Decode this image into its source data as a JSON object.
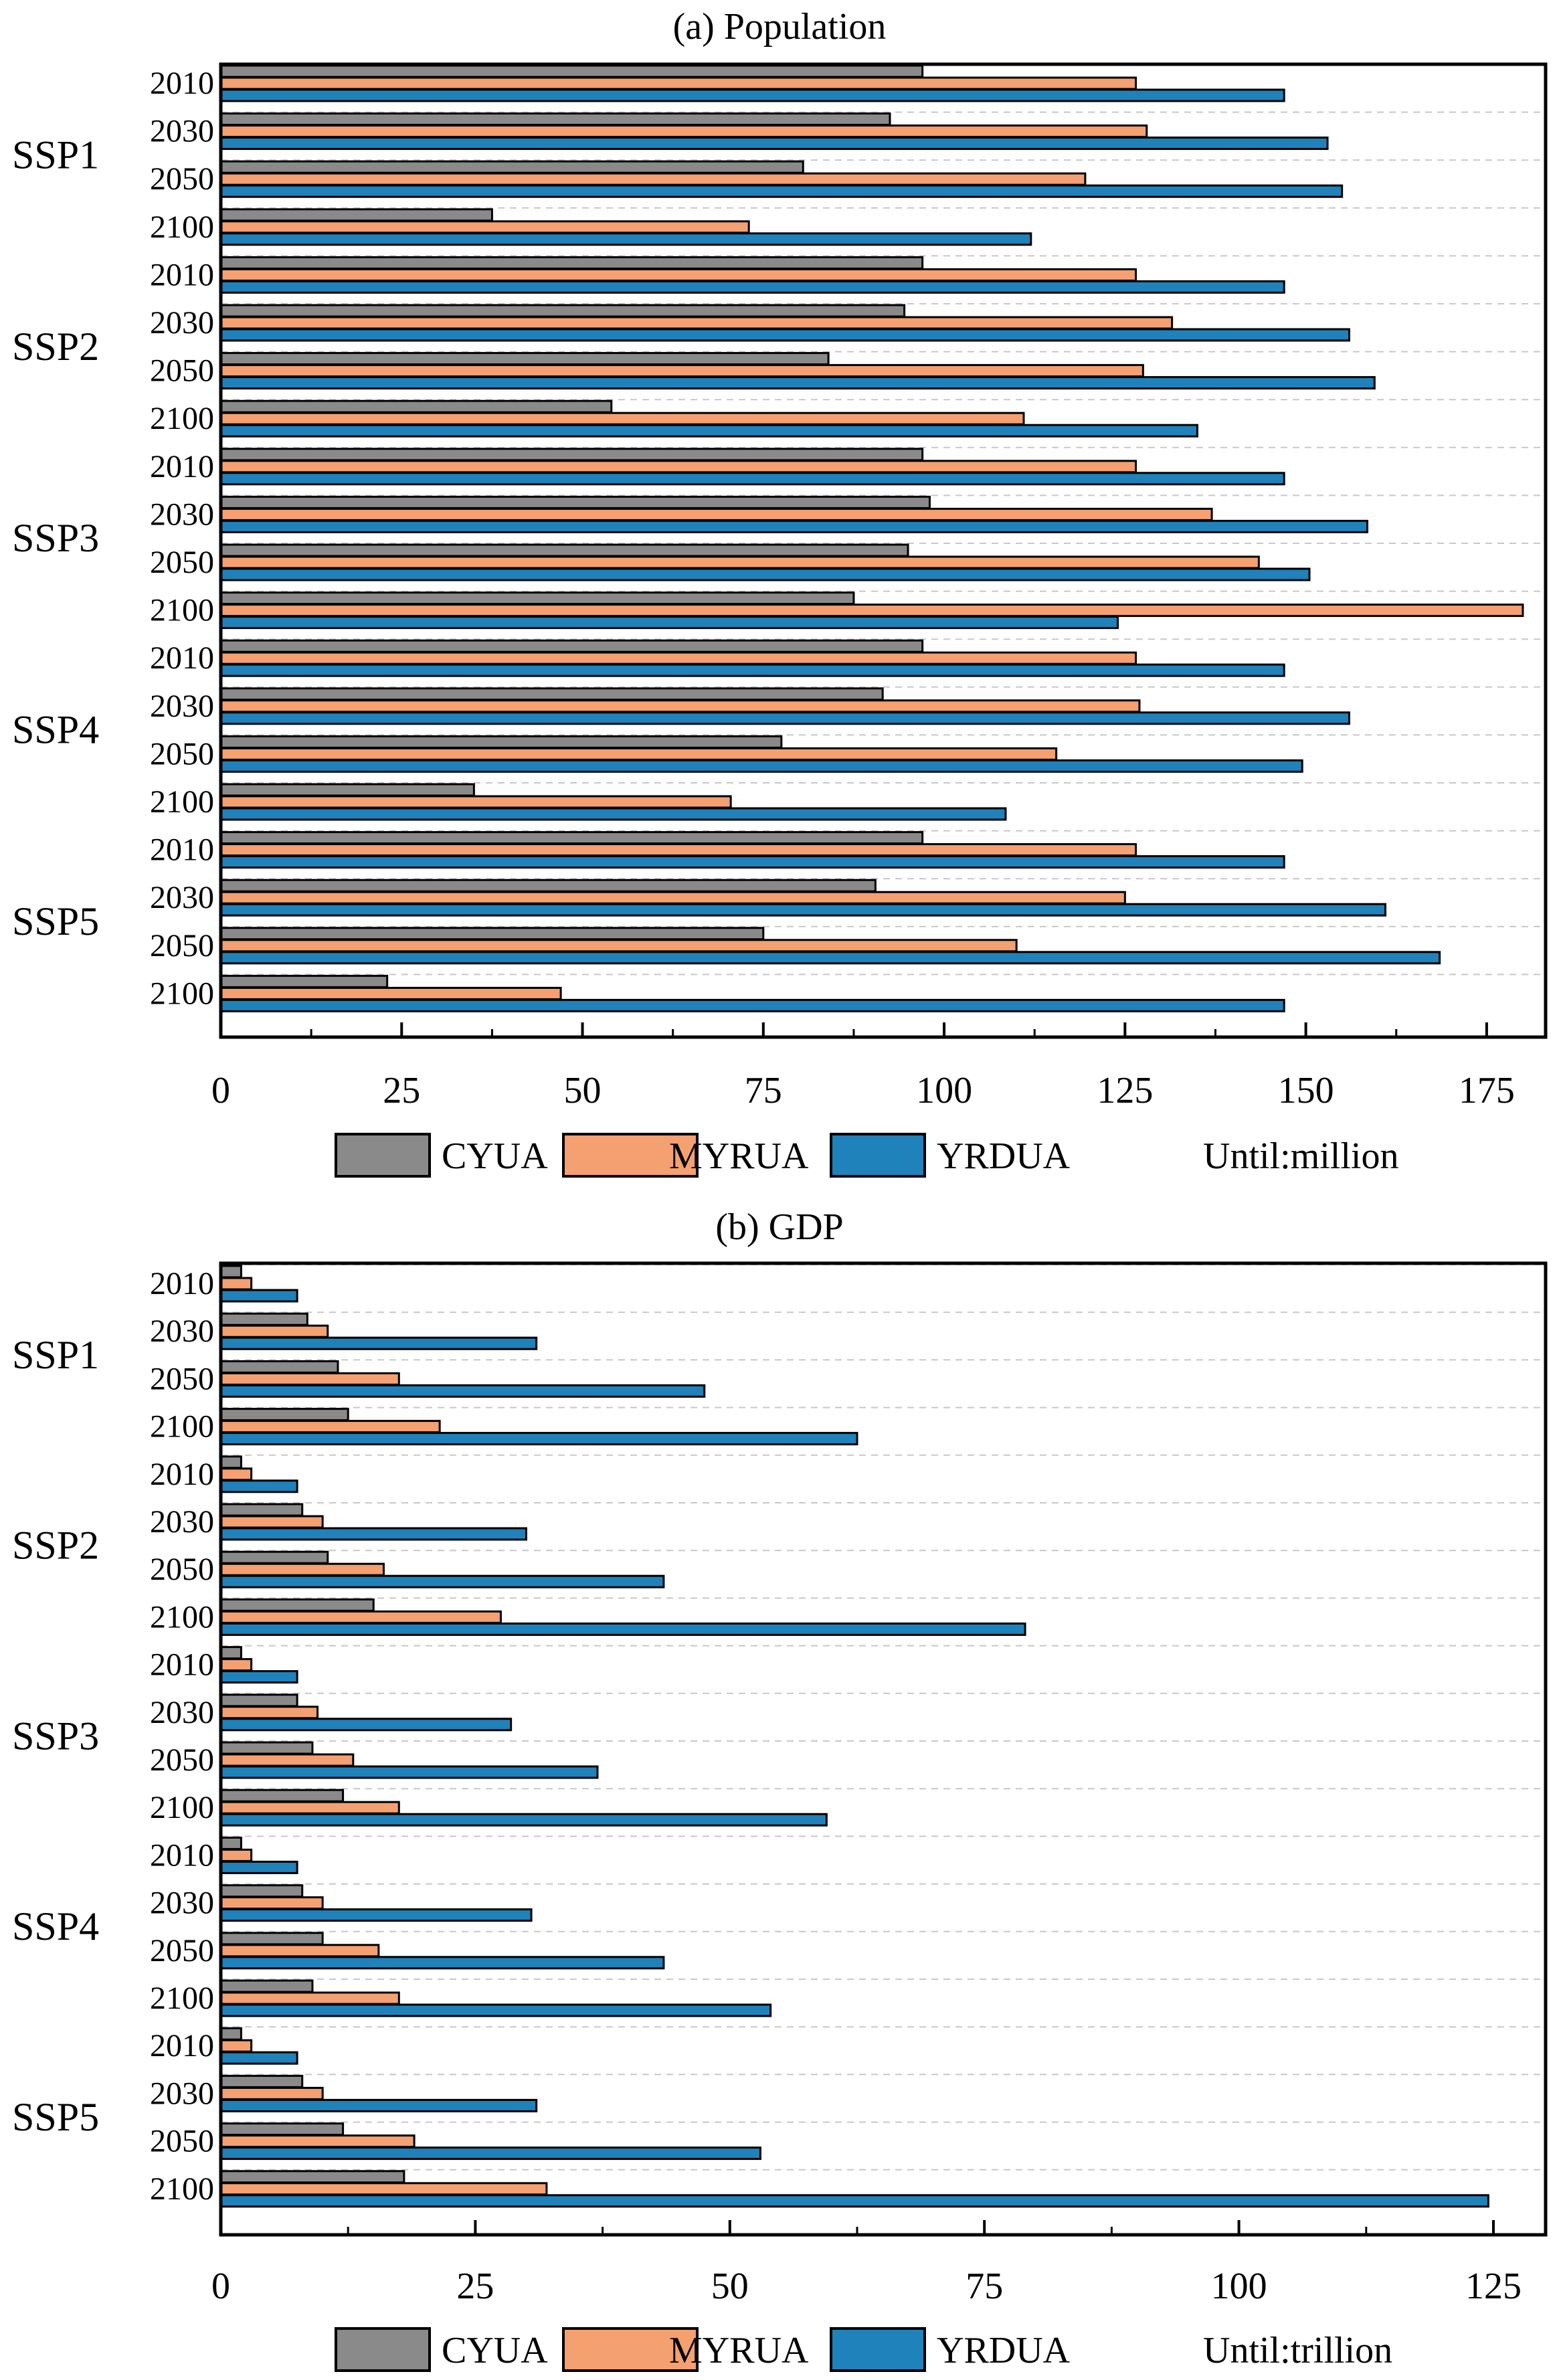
{
  "colors": {
    "CYUA": "#8a8a8a",
    "MYRUA": "#f5a070",
    "YRDUA": "#1f82ba",
    "grid": "#c8c8c8"
  },
  "chart_data": [
    {
      "type": "bar",
      "orientation": "horizontal",
      "title": "(a) Population",
      "groups": [
        "SSP1",
        "SSP2",
        "SSP3",
        "SSP4",
        "SSP5"
      ],
      "years": [
        "2010",
        "2030",
        "2050",
        "2100"
      ],
      "xticks": [
        "0",
        "25",
        "50",
        "75",
        "100",
        "125",
        "150",
        "175"
      ],
      "xlim": [
        0,
        185
      ],
      "legend": [
        "CYUA",
        "MYRUA",
        "YRDUA"
      ],
      "unit_label": "Until:million",
      "series": [
        {
          "name": "CYUA",
          "values": [
            97,
            92.5,
            80.5,
            37.5,
            97,
            94.5,
            84,
            54,
            97,
            98,
            95,
            87.5,
            97,
            91.5,
            77.5,
            35,
            97,
            90.5,
            75,
            23
          ]
        },
        {
          "name": "MYRUA",
          "values": [
            126.5,
            128,
            119.5,
            73,
            126.5,
            131.5,
            127.5,
            111,
            126.5,
            137,
            143.5,
            180,
            126.5,
            127,
            115.5,
            70.5,
            126.5,
            125,
            110,
            47
          ]
        },
        {
          "name": "YRDUA",
          "values": [
            147,
            153,
            155,
            112,
            147,
            156,
            159.5,
            135,
            147,
            158.5,
            150.5,
            124,
            147,
            156,
            149.5,
            108.5,
            147,
            161,
            168.5,
            147
          ]
        }
      ]
    },
    {
      "type": "bar",
      "orientation": "horizontal",
      "title": "(b) GDP",
      "groups": [
        "SSP1",
        "SSP2",
        "SSP3",
        "SSP4",
        "SSP5"
      ],
      "years": [
        "2010",
        "2030",
        "2050",
        "2100"
      ],
      "xticks": [
        "0",
        "25",
        "50",
        "75",
        "100",
        "125"
      ],
      "xlim": [
        0,
        130
      ],
      "legend": [
        "CYUA",
        "MYRUA",
        "YRDUA"
      ],
      "unit_label": "Until:trillion",
      "series": [
        {
          "name": "CYUA",
          "values": [
            2,
            8.5,
            11.5,
            12.5,
            2,
            8,
            10.5,
            15,
            2,
            7.5,
            9,
            12,
            2,
            8,
            10,
            9,
            2,
            8,
            12,
            18
          ]
        },
        {
          "name": "MYRUA",
          "values": [
            3,
            10.5,
            17.5,
            21.5,
            3,
            10,
            16,
            27.5,
            3,
            9.5,
            13,
            17.5,
            3,
            10,
            15.5,
            17.5,
            3,
            10,
            19,
            32
          ]
        },
        {
          "name": "YRDUA",
          "values": [
            7.5,
            31,
            47.5,
            62.5,
            7.5,
            30,
            43.5,
            79,
            7.5,
            28.5,
            37,
            59.5,
            7.5,
            30.5,
            43.5,
            54,
            7.5,
            31,
            53,
            124.5
          ]
        }
      ]
    }
  ]
}
